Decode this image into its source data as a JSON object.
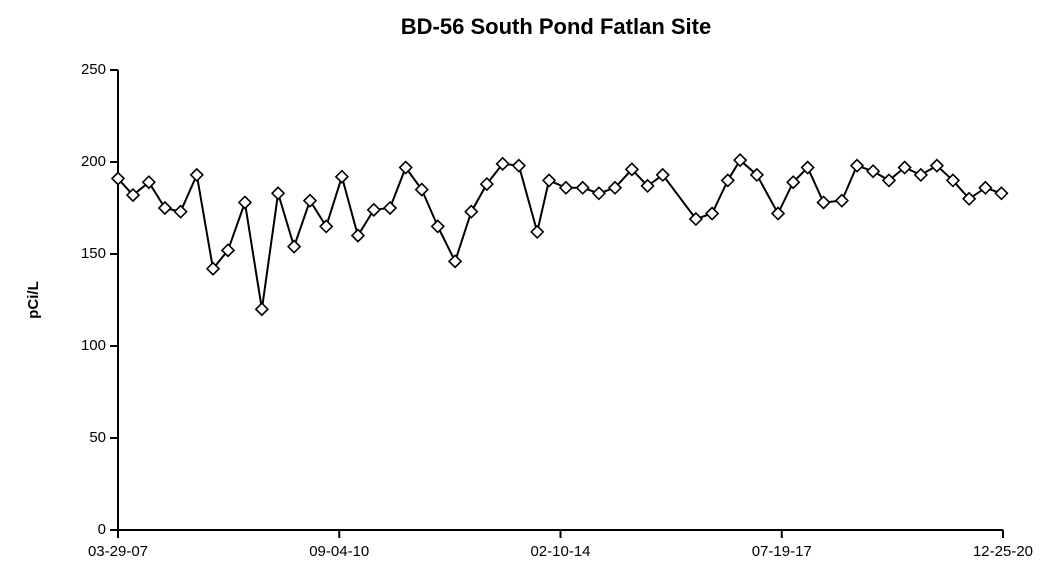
{
  "chart_data": {
    "type": "line",
    "title": "BD-56 South Pond Fatlan Site",
    "y_label": "pCi/L",
    "color": "#000000",
    "x": [
      "2007-03-29",
      "2007-06-22",
      "2007-09-20",
      "2007-12-20",
      "2008-03-18",
      "2008-06-18",
      "2008-09-18",
      "2008-12-12",
      "2009-03-18",
      "2009-06-22",
      "2009-09-22",
      "2009-12-22",
      "2010-03-22",
      "2010-06-22",
      "2010-09-19",
      "2010-12-19",
      "2011-03-19",
      "2011-06-19",
      "2011-09-16",
      "2011-12-16",
      "2012-03-16",
      "2012-06-22",
      "2012-09-22",
      "2012-12-19",
      "2013-03-19",
      "2013-06-19",
      "2013-10-01",
      "2013-12-07",
      "2014-03-13",
      "2014-06-16",
      "2014-09-16",
      "2014-12-16",
      "2015-03-22",
      "2015-06-19",
      "2015-09-13",
      "2016-03-19",
      "2016-06-19",
      "2016-09-16",
      "2016-11-25",
      "2017-02-28",
      "2017-06-28",
      "2017-09-22",
      "2017-12-13",
      "2018-03-13",
      "2018-06-25",
      "2018-09-19",
      "2018-12-19",
      "2019-03-19",
      "2019-06-16",
      "2019-09-16",
      "2019-12-16",
      "2020-03-16",
      "2020-06-16",
      "2020-09-16",
      "2020-12-16"
    ],
    "values": [
      191,
      182,
      189,
      175,
      173,
      193,
      142,
      152,
      178,
      120,
      183,
      154,
      179,
      165,
      192,
      160,
      174,
      175,
      197,
      185,
      165,
      146,
      173,
      188,
      199,
      198,
      162,
      190,
      186,
      186,
      183,
      186,
      196,
      187,
      193,
      169,
      172,
      190,
      201,
      193,
      172,
      189,
      197,
      178,
      179,
      198,
      195,
      190,
      197,
      193,
      198,
      190,
      180,
      186,
      183
    ],
    "xlim": [
      "2007-03-29",
      "2020-12-25"
    ],
    "xticks": [
      {
        "value": "2007-03-29",
        "label": "03-29-07"
      },
      {
        "value": "2010-09-04",
        "label": "09-04-10"
      },
      {
        "value": "2014-02-10",
        "label": "02-10-14"
      },
      {
        "value": "2017-07-19",
        "label": "07-19-17"
      },
      {
        "value": "2020-12-25",
        "label": "12-25-20"
      }
    ],
    "ylim": [
      0,
      250
    ],
    "yticks": [
      0,
      50,
      100,
      150,
      200,
      250
    ],
    "marker": "diamond"
  }
}
